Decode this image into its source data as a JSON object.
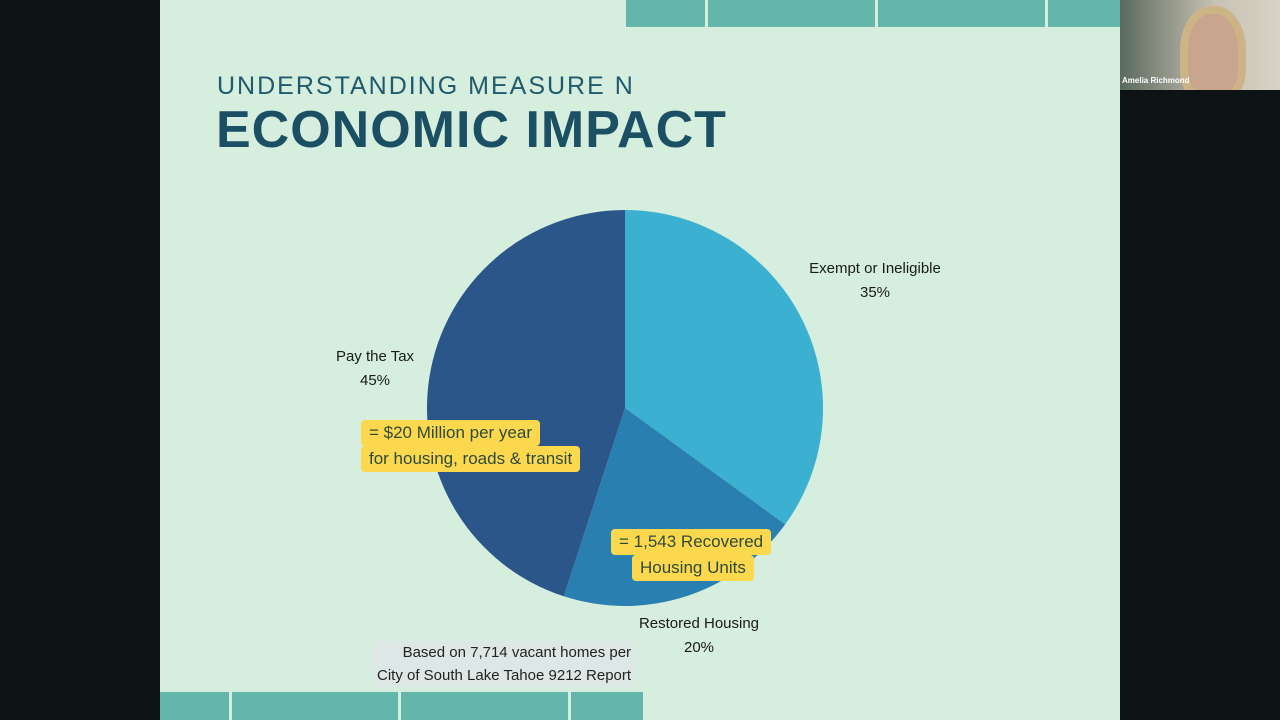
{
  "slide": {
    "subtitle": "UNDERSTANDING MEASURE N",
    "title": "ECONOMIC IMPACT",
    "highlight_tax_line1": "= $20 Million per year",
    "highlight_tax_line2": "for housing, roads & transit",
    "highlight_housing_line1": "= 1,543 Recovered",
    "highlight_housing_line2": "Housing Units",
    "note_line1": "Based on 7,714 vacant homes per",
    "note_line2": "City of South Lake Tahoe 9212 Report"
  },
  "chart_data": {
    "type": "pie",
    "title": "ECONOMIC IMPACT",
    "slices": [
      {
        "label": "Exempt or Ineligible",
        "value": 35,
        "value_label": "35%",
        "color": "#3bb0d1"
      },
      {
        "label": "Restored Housing",
        "value": 20,
        "value_label": "20%",
        "color": "#2980b0"
      },
      {
        "label": "Pay the Tax",
        "value": 45,
        "value_label": "45%",
        "color": "#2a568a"
      }
    ]
  },
  "video": {
    "participant_name": "Amelia Richmond"
  }
}
